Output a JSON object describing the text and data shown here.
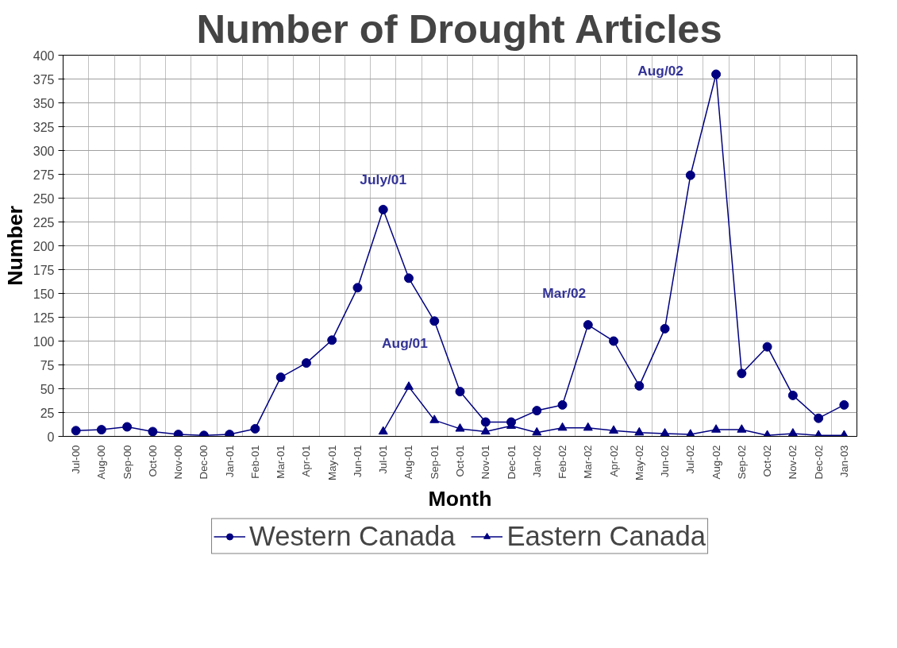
{
  "chart_data": {
    "type": "line",
    "title": "Number of Drought Articles",
    "xlabel": "Month",
    "ylabel": "Number",
    "categories": [
      "Jul-00",
      "Aug-00",
      "Sep-00",
      "Oct-00",
      "Nov-00",
      "Dec-00",
      "Jan-01",
      "Feb-01",
      "Mar-01",
      "Apr-01",
      "May-01",
      "Jun-01",
      "Jul-01",
      "Aug-01",
      "Sep-01",
      "Oct-01",
      "Nov-01",
      "Dec-01",
      "Jan-02",
      "Feb-02",
      "Mar-02",
      "Apr-02",
      "May-02",
      "Jun-02",
      "Jul-02",
      "Aug-02",
      "Sep-02",
      "Oct-02",
      "Nov-02",
      "Dec-02",
      "Jan-03"
    ],
    "series": [
      {
        "name": "Western Canada",
        "color": "#000080",
        "marker": "circle",
        "values": [
          6,
          7,
          10,
          5,
          2,
          1,
          2,
          8,
          62,
          77,
          101,
          156,
          238,
          166,
          121,
          47,
          15,
          15,
          27,
          33,
          117,
          100,
          53,
          113,
          274,
          380,
          66,
          94,
          43,
          19,
          33
        ]
      },
      {
        "name": "Eastern Canada",
        "color": "#000080",
        "marker": "triangle",
        "values": [
          null,
          null,
          null,
          null,
          null,
          null,
          null,
          null,
          null,
          null,
          null,
          null,
          5,
          52,
          17,
          8,
          5,
          11,
          4,
          9,
          9,
          6,
          4,
          3,
          2,
          7,
          7,
          1,
          3,
          1,
          1
        ]
      }
    ],
    "ylim": [
      0,
      400
    ],
    "yticks": [
      0,
      25,
      50,
      75,
      100,
      125,
      150,
      175,
      200,
      225,
      250,
      275,
      300,
      325,
      350,
      375,
      400
    ],
    "grid": true,
    "legend": "bottom",
    "line_style": "solid",
    "annotations": [
      {
        "text": "July/01",
        "x": "Jul-01",
        "y": 238
      },
      {
        "text": "Aug/01",
        "x": "Aug-01",
        "y": 52
      },
      {
        "text": "Mar/02",
        "x": "Mar-02",
        "y": 117
      },
      {
        "text": "Aug/02",
        "x": "Aug-02",
        "y": 380
      }
    ]
  }
}
